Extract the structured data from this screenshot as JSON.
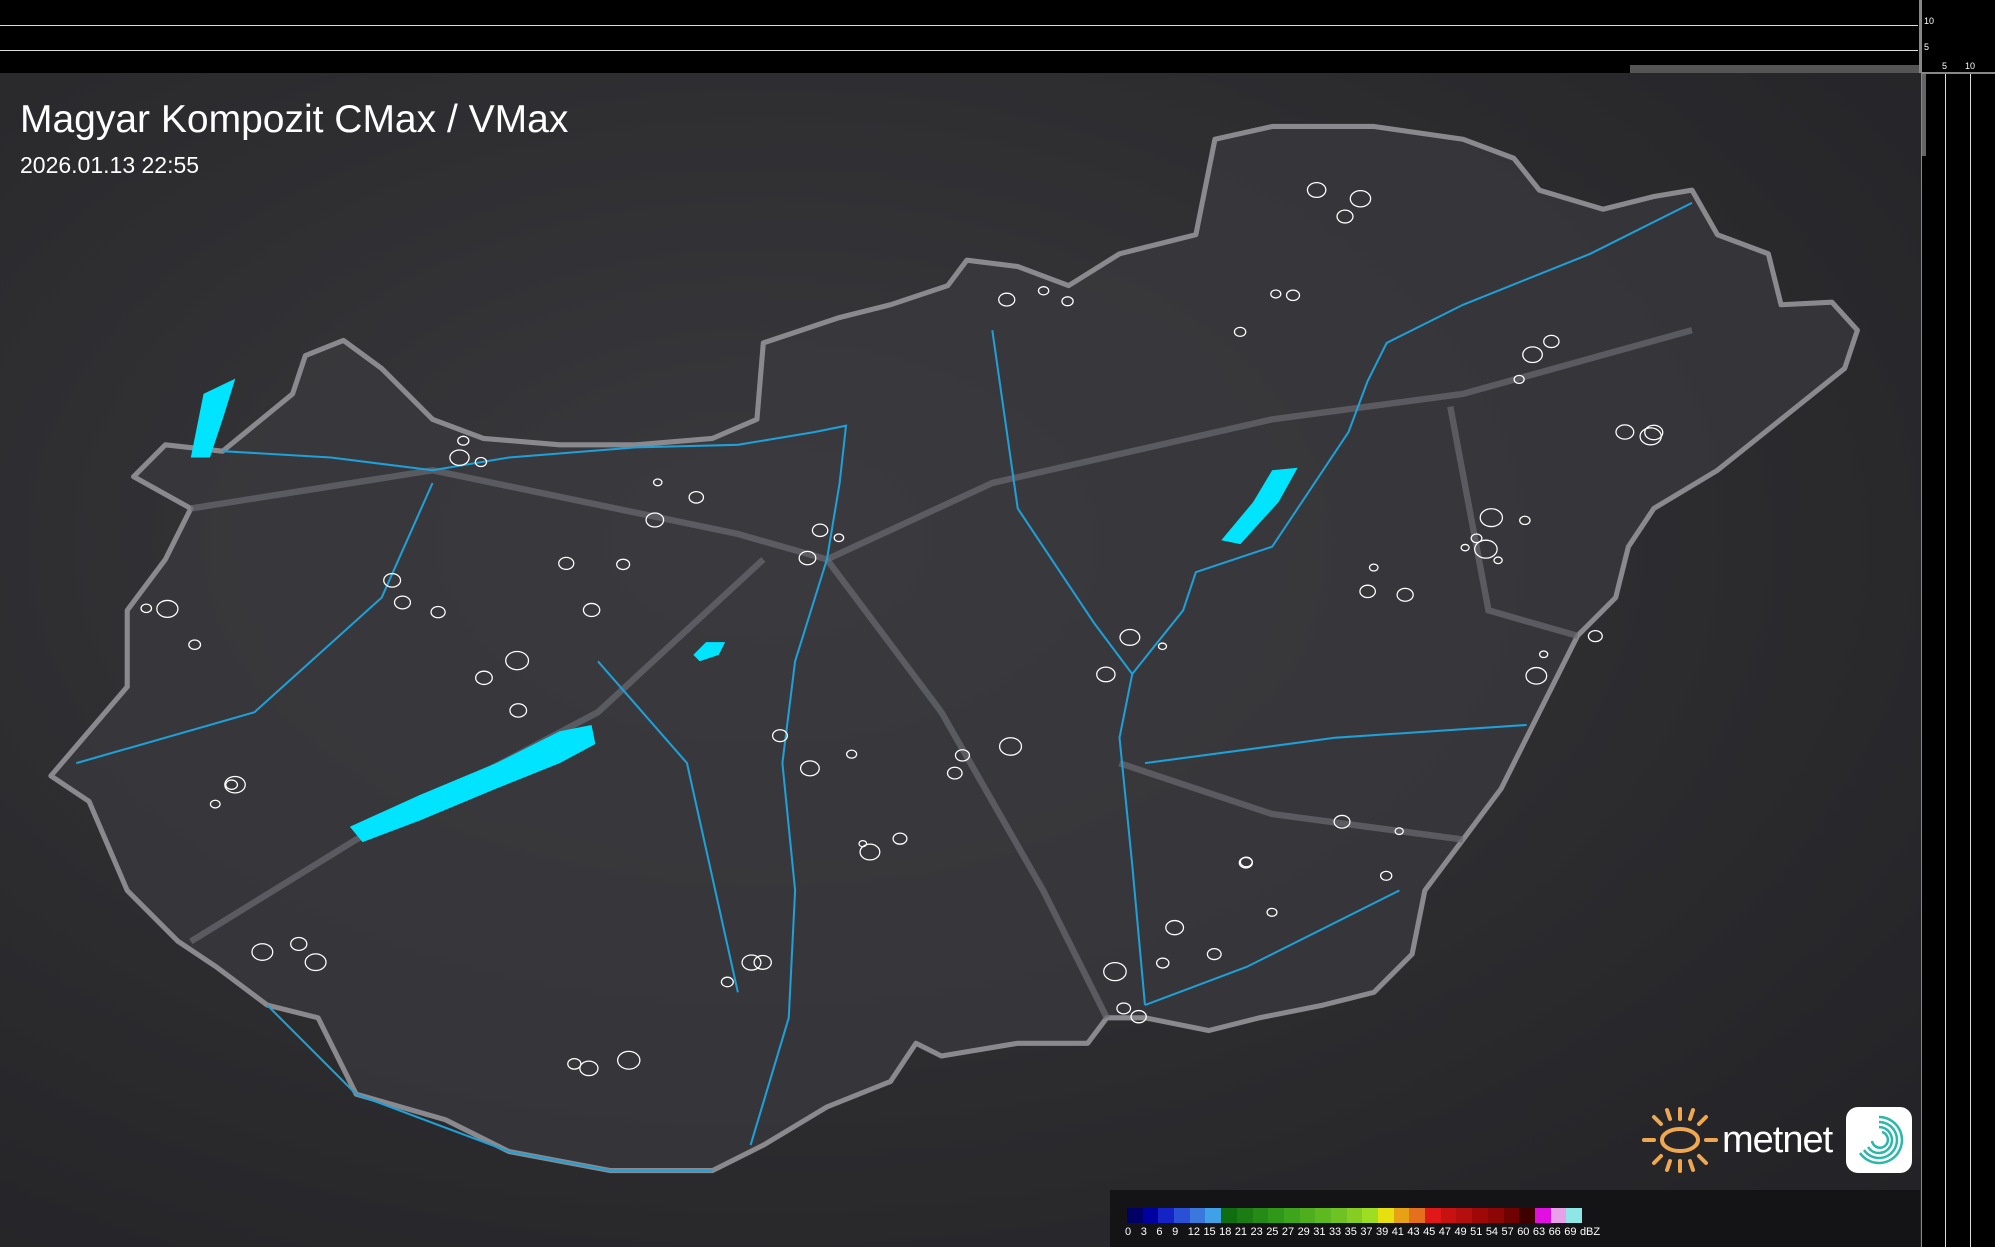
{
  "header": {
    "title": "Magyar Kompozit CMax / VMax",
    "timestamp": "2026.01.13 22:55"
  },
  "side_profiles": {
    "top_axis_ticks": [
      "10",
      "5"
    ],
    "right_axis_ticks": [
      "5",
      "10"
    ]
  },
  "legend": {
    "unit": "dBZ",
    "labels": [
      "0",
      "3",
      "6",
      "9",
      "12",
      "15",
      "18",
      "21",
      "23",
      "25",
      "27",
      "29",
      "31",
      "33",
      "35",
      "37",
      "39",
      "41",
      "43",
      "45",
      "47",
      "49",
      "51",
      "54",
      "57",
      "60",
      "63",
      "66",
      "69"
    ],
    "colors": [
      "#000066",
      "#0000a0",
      "#1424c4",
      "#2a50d6",
      "#3a78de",
      "#40a2e6",
      "#0f6e10",
      "#1a7c12",
      "#268a16",
      "#309818",
      "#3ea41c",
      "#4eae1e",
      "#5eb820",
      "#6ec222",
      "#86cc22",
      "#9ede22",
      "#e6e010",
      "#e6a214",
      "#e4701e",
      "#e01818",
      "#c81212",
      "#b40e0e",
      "#a00808",
      "#8c0606",
      "#700202",
      "#3e0000",
      "#e010e0",
      "#e8a0e8",
      "#8ee6e6"
    ]
  },
  "map": {
    "region": "Hungary",
    "colors": {
      "border": "#8a8a8e",
      "rivers": "#1ea0d8",
      "lakes": "#00e4ff",
      "cities": "#ffffff"
    }
  },
  "branding": {
    "logo": "metnet",
    "logo_colors": {
      "sun": "#f0a850",
      "app_icon": "#2ab8a8"
    }
  }
}
